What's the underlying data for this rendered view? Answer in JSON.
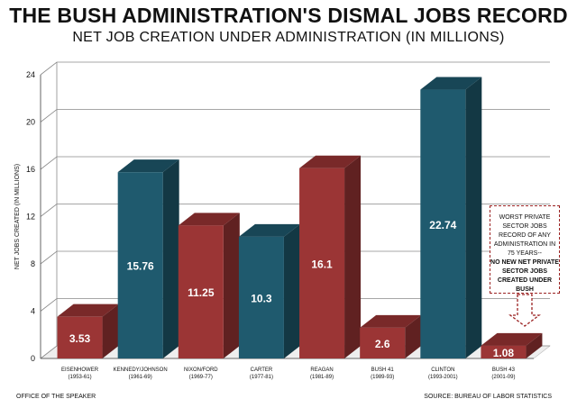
{
  "header": {
    "title": "THE BUSH ADMINISTRATION'S DISMAL JOBS RECORD",
    "subtitle": "NET JOB CREATION UNDER ADMINISTRATION (IN MILLIONS)"
  },
  "footer": {
    "left": "OFFICE OF THE SPEAKER",
    "right": "SOURCE: BUREAU OF LABOR STATISTICS"
  },
  "annotation": {
    "line1": "WORST PRIVATE SECTOR JOBS RECORD OF ANY ADMINISTRATION IN 75 YEARS--",
    "line2": "NO NEW NET PRIVATE SECTOR JOBS CREATED UNDER BUSH"
  },
  "colors": {
    "red": "#9b3535",
    "teal": "#1f5a6e"
  },
  "chart_data": {
    "type": "bar",
    "title": "NET JOB CREATION UNDER ADMINISTRATION (IN MILLIONS)",
    "ylabel": "NET JOBS CREATED (IN MILLIONS)",
    "xlabel": "",
    "ylim": [
      0,
      24
    ],
    "yticks": [
      0,
      4,
      8,
      12,
      16,
      20,
      24
    ],
    "categories": [
      {
        "name": "EISENHOWER",
        "years": "(1953-61)"
      },
      {
        "name": "KENNEDY/JOHNSON",
        "years": "(1961-69)"
      },
      {
        "name": "NIXON/FORD",
        "years": "(1969-77)"
      },
      {
        "name": "CARTER",
        "years": "(1977-81)"
      },
      {
        "name": "REAGAN",
        "years": "(1981-89)"
      },
      {
        "name": "BUSH 41",
        "years": "(1989-93)"
      },
      {
        "name": "CLINTON",
        "years": "(1993-2001)"
      },
      {
        "name": "BUSH 43",
        "years": "(2001-09)"
      }
    ],
    "values": [
      3.53,
      15.76,
      11.25,
      10.3,
      16.1,
      2.6,
      22.74,
      1.08
    ],
    "labels": [
      "3.53",
      "15.76",
      "11.25",
      "10.3",
      "16.1",
      "2.6",
      "22.74",
      "1.08"
    ],
    "bar_colors": [
      "red",
      "teal",
      "red",
      "teal",
      "red",
      "red",
      "teal",
      "red"
    ],
    "grid": true
  }
}
